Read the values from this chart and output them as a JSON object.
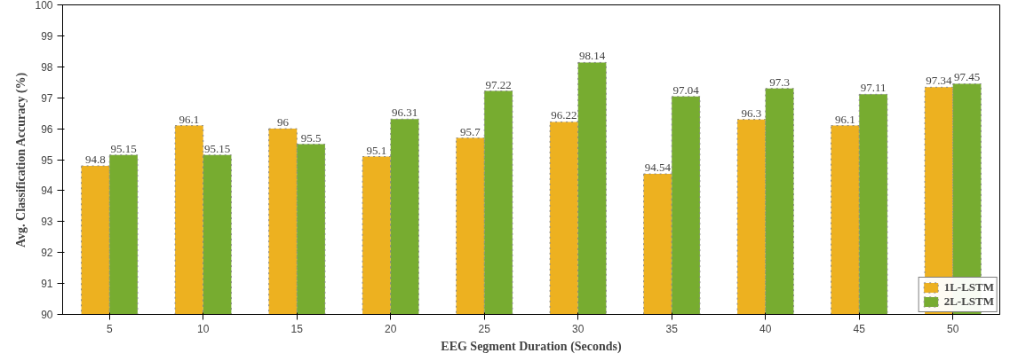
{
  "chart_data": {
    "type": "bar",
    "xlabel": "EEG Segment Duration (Seconds)",
    "ylabel": "Avg. Classification Accuracy (%)",
    "categories": [
      "5",
      "10",
      "15",
      "20",
      "25",
      "30",
      "35",
      "40",
      "45",
      "50"
    ],
    "series": [
      {
        "name": "1L-LSTM",
        "color": "#edb120",
        "values": [
          94.8,
          96.1,
          96,
          95.1,
          95.7,
          96.22,
          94.54,
          96.3,
          96.1,
          97.34
        ]
      },
      {
        "name": "2L-LSTM",
        "color": "#77ac30",
        "values": [
          95.15,
          95.15,
          95.5,
          96.31,
          97.22,
          98.14,
          97.04,
          97.3,
          97.11,
          97.45
        ]
      }
    ],
    "ylim": [
      90,
      100
    ],
    "yticks": [
      90,
      91,
      92,
      93,
      94,
      95,
      96,
      97,
      98,
      99,
      100
    ],
    "data_labels": true,
    "grid": false,
    "legend": "bottom right"
  }
}
